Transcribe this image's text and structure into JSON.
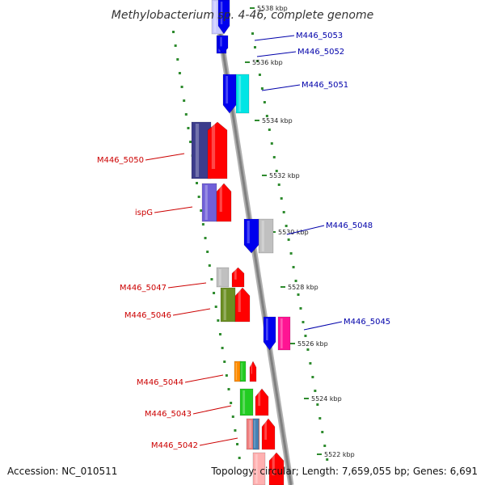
{
  "title": "Methylobacterium sp. 4-46, complete genome",
  "footer": {
    "accession": "Accession: NC_010511",
    "summary": "Topology: circular; Length: 7,659,055 bp; Genes: 6,691"
  },
  "colors": {
    "forward_label": "#cc0000",
    "reverse_label": "#0000aa",
    "backbone": "#999999",
    "tick": "#2e8b2e"
  },
  "scale_marks": [
    {
      "label": "5538 kbp"
    },
    {
      "label": "5536 kbp"
    },
    {
      "label": "5534 kbp"
    },
    {
      "label": "5532 kbp"
    },
    {
      "label": "5530 kbp"
    },
    {
      "label": "5528 kbp"
    },
    {
      "label": "5526 kbp"
    },
    {
      "label": "5524 kbp"
    },
    {
      "label": "5522 kbp"
    }
  ],
  "genes": [
    {
      "name": "M446_5053",
      "strand": "reverse",
      "color": "#0000ee",
      "cog": "#c8c8ff"
    },
    {
      "name": "M446_5052",
      "strand": "reverse",
      "color": "#0000ee",
      "cog": "#0000ee"
    },
    {
      "name": "M446_5051",
      "strand": "reverse",
      "color": "#0000ee",
      "cog": "#00e5e5"
    },
    {
      "name": "M446_5050",
      "strand": "forward",
      "color": "#ff0000",
      "cog": "#3c3c8c"
    },
    {
      "name": "ispG",
      "strand": "forward",
      "color": "#ff0000",
      "cog": "#7060d8"
    },
    {
      "name": "M446_5048",
      "strand": "reverse",
      "color": "#0000ee",
      "cog": "#c0c0c0"
    },
    {
      "name": "M446_5047",
      "strand": "forward",
      "color": "#ff0000",
      "cog": "#c0c0c0"
    },
    {
      "name": "M446_5046",
      "strand": "forward",
      "color": "#ff0000",
      "cog": "#6b8e23"
    },
    {
      "name": "M446_5045",
      "strand": "reverse",
      "color": "#0000ee",
      "cog": "#ff1493"
    },
    {
      "name": "M446_5044",
      "strand": "forward",
      "color": "#ff0000",
      "cog": "#ff8c00"
    },
    {
      "name": "M446_5043",
      "strand": "forward",
      "color": "#ff0000",
      "cog": "#22cc22"
    },
    {
      "name": "M446_5042",
      "strand": "forward",
      "color": "#ff0000",
      "cog": "#f08080"
    }
  ]
}
